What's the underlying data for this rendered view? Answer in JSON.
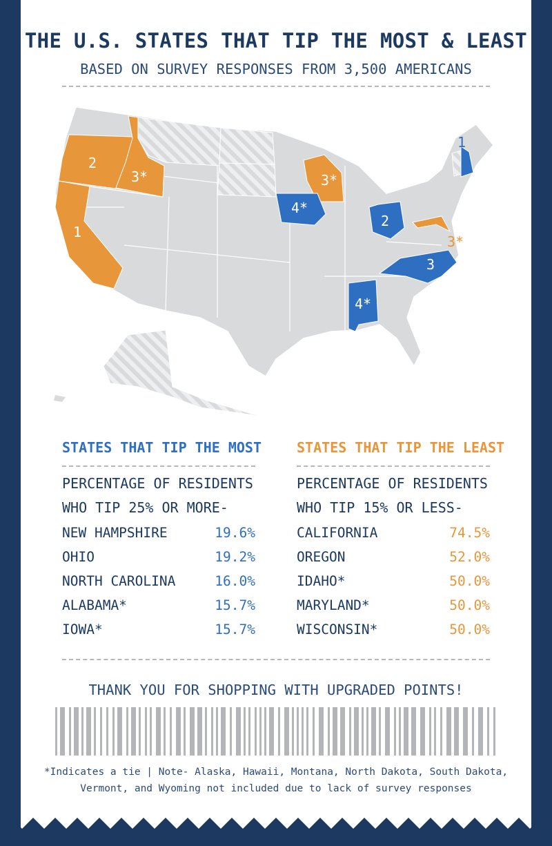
{
  "header": {
    "title": "THE U.S. STATES THAT TIP THE MOST & LEAST",
    "subtitle": "BASED ON SURVEY RESPONSES FROM 3,500 AMERICANS"
  },
  "colors": {
    "navy": "#1b3961",
    "most": "#2f6fc2",
    "least": "#e8963a",
    "no_data": "#d9dadc"
  },
  "map": {
    "labels": {
      "oregon": "2",
      "california": "1",
      "idaho": "3*",
      "wisconsin": "3*",
      "iowa": "4*",
      "ohio": "2",
      "north_carolina": "3",
      "alabama": "4*",
      "new_hampshire": "1",
      "maryland": "3*"
    },
    "most_states": [
      "New Hampshire",
      "Ohio",
      "North Carolina",
      "Alabama",
      "Iowa"
    ],
    "least_states": [
      "California",
      "Oregon",
      "Idaho",
      "Maryland",
      "Wisconsin"
    ],
    "excluded_hatched": [
      "Alaska",
      "Montana",
      "North Dakota",
      "South Dakota",
      "Vermont",
      "Wyoming"
    ]
  },
  "most": {
    "heading": "STATES THAT TIP THE MOST",
    "sub1": "PERCENTAGE OF RESIDENTS",
    "sub2": "WHO TIP 25% OR MORE-",
    "rows": [
      {
        "state": "NEW HAMPSHIRE",
        "value": "19.6%"
      },
      {
        "state": "OHIO",
        "value": "19.2%"
      },
      {
        "state": "NORTH CAROLINA",
        "value": "16.0%"
      },
      {
        "state": "ALABAMA*",
        "value": "15.7%"
      },
      {
        "state": "IOWA*",
        "value": "15.7%"
      }
    ]
  },
  "least": {
    "heading": "STATES THAT TIP THE LEAST",
    "sub1": "PERCENTAGE OF RESIDENTS",
    "sub2": "WHO TIP 15% OR LESS-",
    "rows": [
      {
        "state": "CALIFORNIA",
        "value": "74.5%"
      },
      {
        "state": "OREGON",
        "value": "52.0%"
      },
      {
        "state": "IDAHO*",
        "value": "50.0%"
      },
      {
        "state": "MARYLAND*",
        "value": "50.0%"
      },
      {
        "state": "WISCONSIN*",
        "value": "50.0%"
      }
    ]
  },
  "footer": {
    "thanks": "THANK YOU FOR SHOPPING WITH UPGRADED POINTS!",
    "note1": "*Indicates a tie | Note- Alaska, Hawaii, Montana, North Dakota, South Dakota,",
    "note2": "Vermont, and Wyoming not included due to lack of survey responses"
  }
}
